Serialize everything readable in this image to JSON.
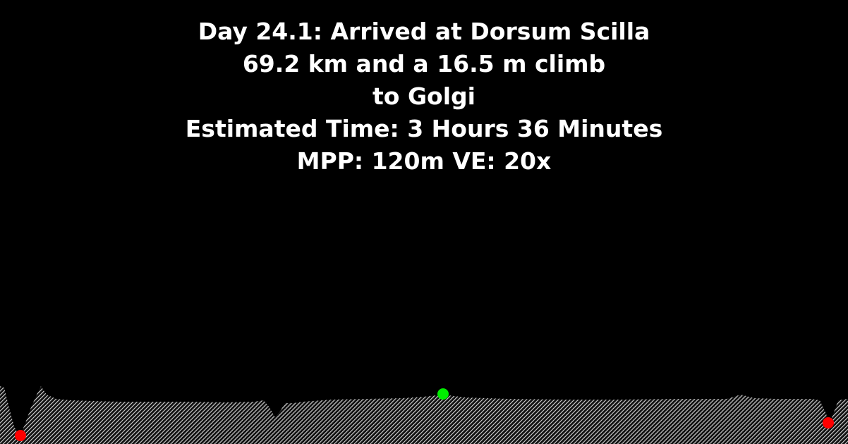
{
  "caption": {
    "line1": "Day 24.1: Arrived at Dorsum Scilla",
    "line2": "69.2 km and a 16.5 m climb",
    "line3": "to Golgi",
    "line4": "Estimated Time: 3 Hours 36 Minutes",
    "line5": "MPP: 120m VE: 20x"
  },
  "colors": {
    "background": "#000000",
    "text": "#ffffff",
    "terrain_fill": "#cfcfcf",
    "marker_low": "#ff0000",
    "marker_high": "#00ee00"
  },
  "markers": [
    {
      "type": "low-point",
      "color": "#ff0000"
    },
    {
      "type": "current-position",
      "color": "#00ee00"
    },
    {
      "type": "low-point",
      "color": "#ff0000"
    }
  ]
}
